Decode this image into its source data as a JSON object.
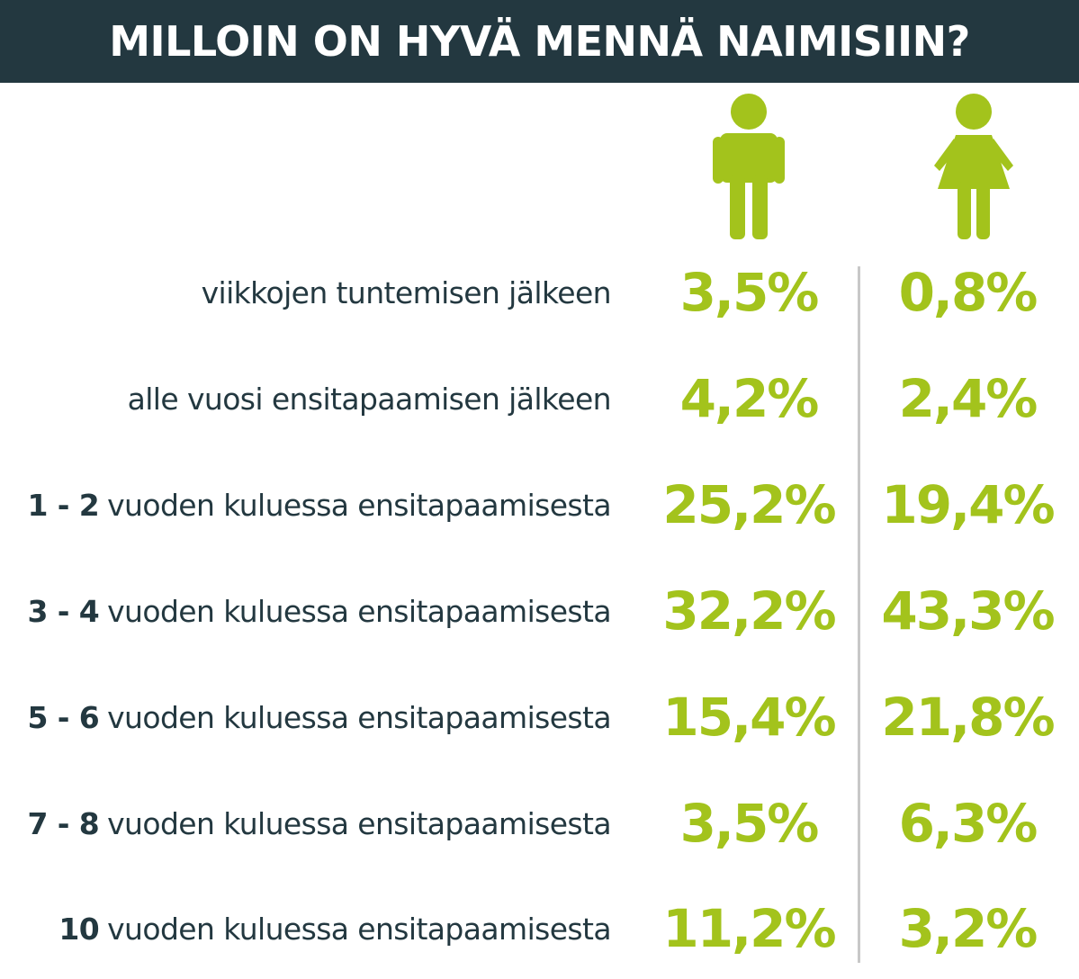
{
  "title": "MILLOIN ON HYVÄ MENNÄ NAIMISIIN?",
  "colors": {
    "header_bg": "#233840",
    "accent": "#a3c31c",
    "label_text": "#233840",
    "divider": "#c8c8c8"
  },
  "columns": [
    {
      "icon": "male-person-icon"
    },
    {
      "icon": "female-person-icon"
    }
  ],
  "rows": [
    {
      "num": "",
      "text": "viikkojen tuntemisen jälkeen",
      "male": "3,5%",
      "female": "0,8%"
    },
    {
      "num": "",
      "text": "alle vuosi ensitapaamisen jälkeen",
      "male": "4,2%",
      "female": "2,4%"
    },
    {
      "num": "1 - 2",
      "text": "vuoden kuluessa ensitapaamisesta",
      "male": "25,2%",
      "female": "19,4%"
    },
    {
      "num": "3 - 4",
      "text": "vuoden kuluessa ensitapaamisesta",
      "male": "32,2%",
      "female": "43,3%"
    },
    {
      "num": "5 - 6",
      "text": "vuoden kuluessa ensitapaamisesta",
      "male": "15,4%",
      "female": "21,8%"
    },
    {
      "num": "7 - 8",
      "text": "vuoden kuluessa ensitapaamisesta",
      "male": "3,5%",
      "female": "6,3%"
    },
    {
      "num": "10",
      "text": "vuoden kuluessa ensitapaamisesta",
      "male": "11,2%",
      "female": "3,2%"
    }
  ],
  "chart_data": {
    "type": "table",
    "title": "MILLOIN ON HYVÄ MENNÄ NAIMISIIN?",
    "categories": [
      "viikkojen tuntemisen jälkeen",
      "alle vuosi ensitapaamisen jälkeen",
      "1 - 2 vuoden kuluessa ensitapaamisesta",
      "3 - 4 vuoden kuluessa ensitapaamisesta",
      "5 - 6 vuoden kuluessa ensitapaamisesta",
      "7 - 8 vuoden kuluessa ensitapaamisesta",
      "10 vuoden kuluessa ensitapaamisesta"
    ],
    "series": [
      {
        "values": [
          3.5,
          4.2,
          25.2,
          32.2,
          15.4,
          3.5,
          11.2
        ]
      },
      {
        "values": [
          0.8,
          2.4,
          19.4,
          43.3,
          21.8,
          6.3,
          3.2
        ]
      }
    ]
  }
}
